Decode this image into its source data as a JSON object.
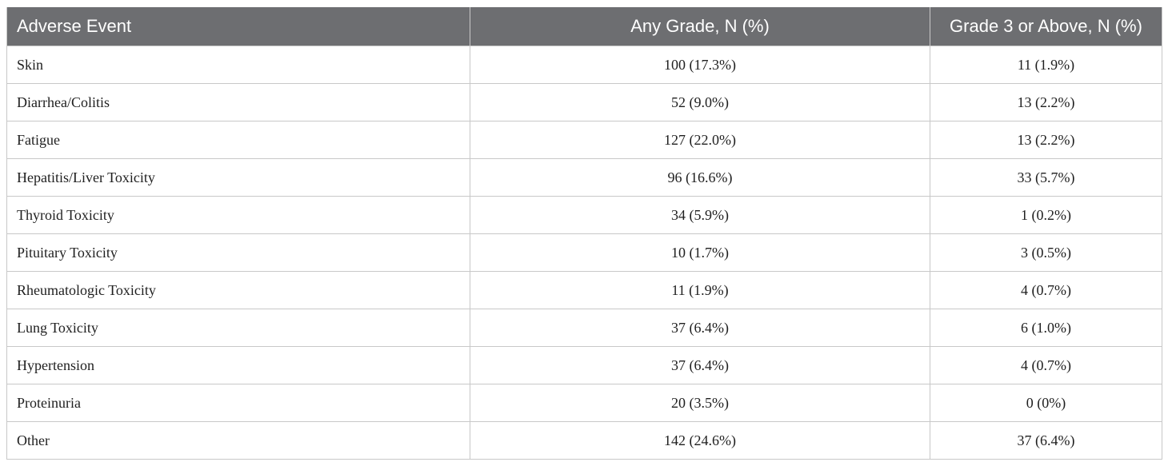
{
  "table": {
    "headers": [
      "Adverse Event",
      "Any Grade, N (%)",
      "Grade 3 or Above, N (%)"
    ],
    "rows": [
      [
        "Skin",
        "100 (17.3%)",
        "11 (1.9%)"
      ],
      [
        "Diarrhea/Colitis",
        "52 (9.0%)",
        "13 (2.2%)"
      ],
      [
        "Fatigue",
        "127 (22.0%)",
        "13 (2.2%)"
      ],
      [
        "Hepatitis/Liver Toxicity",
        "96 (16.6%)",
        "33 (5.7%)"
      ],
      [
        "Thyroid Toxicity",
        "34 (5.9%)",
        "1 (0.2%)"
      ],
      [
        "Pituitary Toxicity",
        "10 (1.7%)",
        "3 (0.5%)"
      ],
      [
        "Rheumatologic Toxicity",
        "11 (1.9%)",
        "4 (0.7%)"
      ],
      [
        "Lung Toxicity",
        "37 (6.4%)",
        "6 (1.0%)"
      ],
      [
        "Hypertension",
        "37 (6.4%)",
        "4 (0.7%)"
      ],
      [
        "Proteinuria",
        "20 (3.5%)",
        "0 (0%)"
      ],
      [
        "Other",
        "142 (24.6%)",
        "37 (6.4%)"
      ]
    ]
  },
  "colors": {
    "header_background": "#6d6e71",
    "header_text": "#ffffff",
    "border": "#c8c8c8"
  }
}
